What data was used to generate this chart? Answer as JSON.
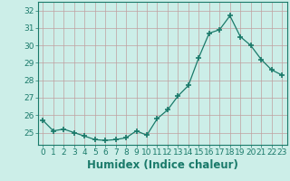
{
  "x": [
    0,
    1,
    2,
    3,
    4,
    5,
    6,
    7,
    8,
    9,
    10,
    11,
    12,
    13,
    14,
    15,
    16,
    17,
    18,
    19,
    20,
    21,
    22,
    23
  ],
  "y": [
    25.7,
    25.1,
    25.2,
    25.0,
    24.8,
    24.6,
    24.55,
    24.6,
    24.7,
    25.1,
    24.85,
    25.8,
    26.3,
    27.1,
    27.7,
    29.3,
    30.7,
    30.9,
    31.7,
    30.5,
    30.0,
    29.2,
    28.6,
    28.3
  ],
  "line_color": "#1a7a6a",
  "marker": "+",
  "marker_size": 4,
  "bg_color": "#cceee8",
  "grid_color": "#c0a0a0",
  "xlabel": "Humidex (Indice chaleur)",
  "xlim": [
    -0.5,
    23.5
  ],
  "ylim": [
    24.3,
    32.5
  ],
  "yticks": [
    25,
    26,
    27,
    28,
    29,
    30,
    31,
    32
  ],
  "xticks": [
    0,
    1,
    2,
    3,
    4,
    5,
    6,
    7,
    8,
    9,
    10,
    11,
    12,
    13,
    14,
    15,
    16,
    17,
    18,
    19,
    20,
    21,
    22,
    23
  ],
  "tick_label_fontsize": 6.5,
  "xlabel_fontsize": 8.5,
  "tick_color": "#1a7a6a",
  "axis_color": "#1a7a6a",
  "lw": 0.9
}
